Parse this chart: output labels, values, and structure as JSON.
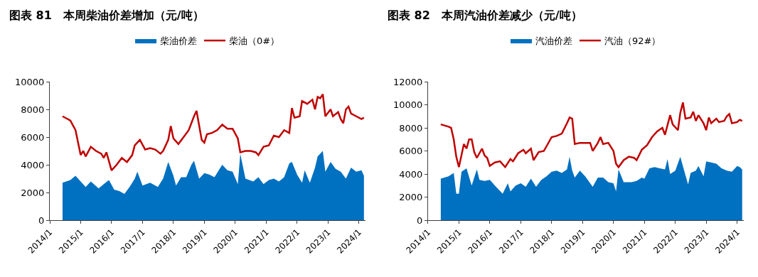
{
  "chart_data": [
    {
      "type": "line",
      "title": "图表 81　本周柴油价差增加（元/吨）",
      "legend": "top",
      "marker": "none",
      "xlim": [
        "2014-01-01",
        "2024-03-20"
      ],
      "xticks": [
        {
          "value": "2014-01",
          "label": "2014/1"
        },
        {
          "value": "2015-01",
          "label": "2015/1"
        },
        {
          "value": "2016-01",
          "label": "2016/1"
        },
        {
          "value": "2017-01",
          "label": "2017/1"
        },
        {
          "value": "2018-01",
          "label": "2018/1"
        },
        {
          "value": "2019-01",
          "label": "2019/1"
        },
        {
          "value": "2020-01",
          "label": "2020/1"
        },
        {
          "value": "2021-01",
          "label": "2021/1"
        },
        {
          "value": "2022-01",
          "label": "2022/1"
        },
        {
          "value": "2023-01",
          "label": "2023/1"
        },
        {
          "value": "2024-01",
          "label": "2024/1"
        }
      ],
      "ylim": [
        0,
        10000
      ],
      "yticks": [
        0,
        2000,
        4000,
        6000,
        8000,
        10000
      ],
      "series": [
        {
          "name": "柴油价差",
          "type": "area",
          "color": "#0070c0",
          "x": [
            "2014-06",
            "2014-09",
            "2014-11",
            "2015-01",
            "2015-03",
            "2015-05",
            "2015-08",
            "2015-10",
            "2015-12",
            "2016-02",
            "2016-04",
            "2016-06",
            "2016-08",
            "2016-10",
            "2016-11",
            "2017-01",
            "2017-04",
            "2017-07",
            "2017-09",
            "2017-11",
            "2018-01",
            "2018-02",
            "2018-04",
            "2018-06",
            "2018-08",
            "2018-09",
            "2018-11",
            "2019-01",
            "2019-03",
            "2019-05",
            "2019-07",
            "2019-08",
            "2019-10",
            "2019-12",
            "2020-02",
            "2020-03",
            "2020-05",
            "2020-08",
            "2020-10",
            "2020-12",
            "2021-02",
            "2021-04",
            "2021-06",
            "2021-08",
            "2021-10",
            "2021-11",
            "2022-01",
            "2022-03",
            "2022-04",
            "2022-06",
            "2022-08",
            "2022-09",
            "2022-11",
            "2022-12",
            "2023-02",
            "2023-04",
            "2023-06",
            "2023-08",
            "2023-10",
            "2023-12",
            "2024-02",
            "2024-03"
          ],
          "values": [
            2700,
            2900,
            3200,
            2800,
            2400,
            2800,
            2300,
            2600,
            2900,
            2200,
            2100,
            1900,
            2400,
            3000,
            3500,
            2500,
            2700,
            2400,
            3000,
            4200,
            3200,
            2500,
            3100,
            3100,
            4000,
            4300,
            3000,
            3400,
            3300,
            3100,
            3700,
            4000,
            3600,
            3500,
            2600,
            4800,
            3000,
            2800,
            3100,
            2600,
            2900,
            3000,
            2800,
            3100,
            4100,
            4200,
            3300,
            2700,
            3600,
            2700,
            3800,
            4600,
            5000,
            3500,
            4200,
            3700,
            3500,
            3000,
            3800,
            3500,
            3600,
            3200
          ]
        },
        {
          "name": "柴油（0#）",
          "color": "#c00000",
          "x": [
            "2014-06",
            "2014-09",
            "2014-11",
            "2015-01",
            "2015-02",
            "2015-03",
            "2015-05",
            "2015-07",
            "2015-09",
            "2015-10",
            "2015-11",
            "2016-01",
            "2016-03",
            "2016-05",
            "2016-07",
            "2016-09",
            "2016-10",
            "2016-12",
            "2017-02",
            "2017-04",
            "2017-06",
            "2017-08",
            "2017-09",
            "2017-11",
            "2017-12",
            "2018-01",
            "2018-03",
            "2018-05",
            "2018-07",
            "2018-09",
            "2018-10",
            "2018-12",
            "2019-01",
            "2019-02",
            "2019-04",
            "2019-06",
            "2019-08",
            "2019-10",
            "2019-12",
            "2020-02",
            "2020-03",
            "2020-05",
            "2020-07",
            "2020-09",
            "2020-10",
            "2020-12",
            "2021-02",
            "2021-04",
            "2021-06",
            "2021-08",
            "2021-10",
            "2021-11",
            "2021-12",
            "2022-02",
            "2022-03",
            "2022-05",
            "2022-07",
            "2022-08",
            "2022-09",
            "2022-10",
            "2022-11",
            "2022-12",
            "2023-02",
            "2023-03",
            "2023-05",
            "2023-06",
            "2023-07",
            "2023-08",
            "2023-09",
            "2023-10",
            "2023-12",
            "2024-02",
            "2024-03"
          ],
          "values": [
            7500,
            7200,
            6500,
            4700,
            5000,
            4600,
            5300,
            5000,
            4800,
            4500,
            4900,
            3600,
            4000,
            4500,
            4200,
            4700,
            5400,
            5800,
            5100,
            5200,
            5100,
            4800,
            5000,
            5800,
            6800,
            5900,
            5500,
            6000,
            6500,
            7500,
            7900,
            5800,
            5600,
            6200,
            6300,
            6500,
            6900,
            6600,
            6600,
            5900,
            4900,
            5000,
            5000,
            4900,
            4700,
            5300,
            5400,
            6100,
            6000,
            6500,
            6300,
            8100,
            7400,
            7500,
            8600,
            8400,
            8700,
            8000,
            8900,
            8800,
            9100,
            7500,
            8000,
            7500,
            7800,
            7300,
            7000,
            8000,
            8200,
            7700,
            7500,
            7300,
            7400
          ]
        }
      ]
    },
    {
      "type": "line",
      "title": "图表 82　本周汽油价差减少（元/吨）",
      "legend": "top",
      "marker": "none",
      "xlim": [
        "2014-01-01",
        "2024-03-20"
      ],
      "xticks": [
        {
          "value": "2014-01",
          "label": "2014/1"
        },
        {
          "value": "2015-01",
          "label": "2015/1"
        },
        {
          "value": "2016-01",
          "label": "2016/1"
        },
        {
          "value": "2017-01",
          "label": "2017/1"
        },
        {
          "value": "2018-01",
          "label": "2018/1"
        },
        {
          "value": "2019-01",
          "label": "2019/1"
        },
        {
          "value": "2020-01",
          "label": "2020/1"
        },
        {
          "value": "2021-01",
          "label": "2021/1"
        },
        {
          "value": "2022-01",
          "label": "2022/1"
        },
        {
          "value": "2023-01",
          "label": "2023/1"
        },
        {
          "value": "2024-01",
          "label": "2024/1"
        }
      ],
      "ylim": [
        0,
        12000
      ],
      "yticks": [
        0,
        2000,
        4000,
        6000,
        8000,
        10000,
        12000
      ],
      "series": [
        {
          "name": "汽油价差",
          "type": "area",
          "color": "#0070c0",
          "x": [
            "2014-06",
            "2014-09",
            "2014-11",
            "2014-12",
            "2015-01",
            "2015-02",
            "2015-04",
            "2015-06",
            "2015-08",
            "2015-09",
            "2015-11",
            "2016-01",
            "2016-03",
            "2016-06",
            "2016-08",
            "2016-09",
            "2016-11",
            "2017-01",
            "2017-03",
            "2017-05",
            "2017-07",
            "2017-09",
            "2017-11",
            "2018-01",
            "2018-03",
            "2018-05",
            "2018-07",
            "2018-08",
            "2018-09",
            "2018-10",
            "2018-12",
            "2019-02",
            "2019-04",
            "2019-05",
            "2019-07",
            "2019-09",
            "2019-11",
            "2020-01",
            "2020-02",
            "2020-03",
            "2020-05",
            "2020-08",
            "2020-10",
            "2020-12",
            "2021-01",
            "2021-03",
            "2021-05",
            "2021-07",
            "2021-09",
            "2021-10",
            "2021-11",
            "2022-01",
            "2022-03",
            "2022-05",
            "2022-06",
            "2022-07",
            "2022-09",
            "2022-10",
            "2022-12",
            "2023-01",
            "2023-03",
            "2023-05",
            "2023-07",
            "2023-09",
            "2023-11",
            "2024-01",
            "2024-02",
            "2024-03"
          ],
          "values": [
            3600,
            3800,
            4100,
            2300,
            2300,
            4200,
            4500,
            3000,
            4400,
            3500,
            3400,
            3500,
            3000,
            2300,
            3200,
            2500,
            3000,
            3200,
            2900,
            3600,
            2900,
            3500,
            3800,
            4200,
            4300,
            4100,
            4400,
            5500,
            4300,
            3700,
            4300,
            3800,
            3200,
            2900,
            3700,
            3700,
            3300,
            3200,
            2500,
            4400,
            3300,
            3300,
            3400,
            3700,
            3600,
            4500,
            4600,
            4500,
            4400,
            5300,
            4000,
            4300,
            5500,
            3900,
            3100,
            4100,
            4300,
            4700,
            3800,
            5100,
            5000,
            4900,
            4500,
            4300,
            4200,
            4700,
            4600,
            4400
          ]
        },
        {
          "name": "汽油（92#）",
          "color": "#c00000",
          "x": [
            "2014-06",
            "2014-09",
            "2014-10",
            "2014-11",
            "2014-12",
            "2015-01",
            "2015-03",
            "2015-04",
            "2015-05",
            "2015-06",
            "2015-07",
            "2015-08",
            "2015-10",
            "2015-11",
            "2015-12",
            "2016-01",
            "2016-03",
            "2016-05",
            "2016-07",
            "2016-09",
            "2016-10",
            "2016-12",
            "2017-02",
            "2017-03",
            "2017-05",
            "2017-06",
            "2017-08",
            "2017-10",
            "2017-11",
            "2018-01",
            "2018-03",
            "2018-05",
            "2018-07",
            "2018-08",
            "2018-09",
            "2018-10",
            "2018-12",
            "2019-02",
            "2019-04",
            "2019-05",
            "2019-07",
            "2019-08",
            "2019-09",
            "2019-11",
            "2020-01",
            "2020-02",
            "2020-03",
            "2020-05",
            "2020-07",
            "2020-09",
            "2020-10",
            "2020-12",
            "2021-02",
            "2021-04",
            "2021-06",
            "2021-08",
            "2021-09",
            "2021-11",
            "2021-12",
            "2022-02",
            "2022-03",
            "2022-04",
            "2022-05",
            "2022-07",
            "2022-08",
            "2022-09",
            "2022-10",
            "2022-12",
            "2023-01",
            "2023-02",
            "2023-03",
            "2023-05",
            "2023-06",
            "2023-08",
            "2023-09",
            "2023-10",
            "2023-11",
            "2024-01",
            "2024-02",
            "2024-03"
          ],
          "values": [
            8300,
            8100,
            8000,
            7000,
            5500,
            4600,
            6600,
            6200,
            7000,
            7000,
            5900,
            5400,
            6200,
            5600,
            5400,
            4700,
            5000,
            5100,
            4600,
            5300,
            5100,
            5800,
            6100,
            5800,
            6200,
            5200,
            5900,
            6000,
            6400,
            7200,
            7300,
            7500,
            8400,
            8900,
            8800,
            6600,
            6700,
            6700,
            6700,
            6000,
            6700,
            7200,
            6600,
            6700,
            6000,
            4900,
            4600,
            5200,
            5500,
            5400,
            5200,
            6100,
            6500,
            7200,
            7700,
            8000,
            7400,
            9100,
            8300,
            7800,
            9300,
            10200,
            8800,
            8900,
            9400,
            8600,
            9100,
            8400,
            7800,
            8900,
            8400,
            8800,
            8500,
            8600,
            9000,
            9200,
            8400,
            8500,
            8700,
            8600
          ]
        }
      ]
    }
  ]
}
